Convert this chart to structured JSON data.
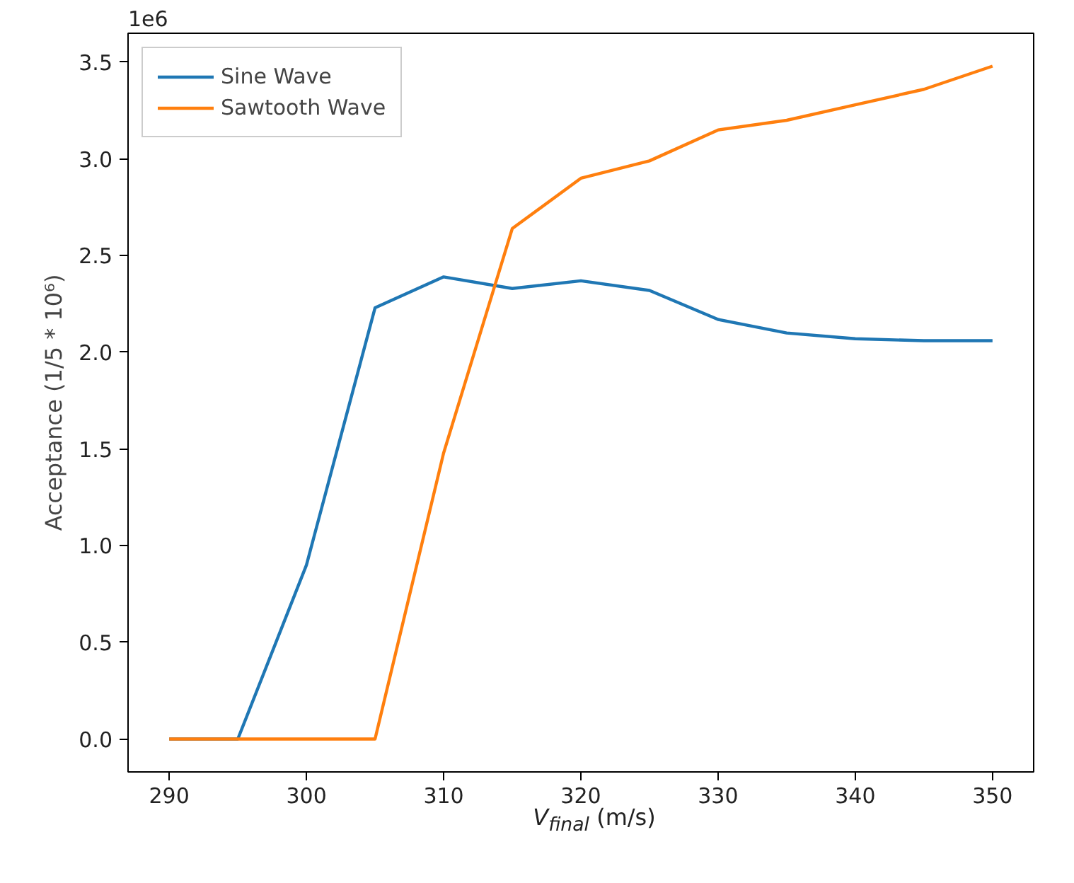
{
  "chart_data": {
    "type": "line",
    "xlabel": "V$_{final}$ (m/s)",
    "ylabel": "Acceptance (1/5 * 10⁶)",
    "annotations": [
      "1e6"
    ],
    "x": [
      290,
      295,
      300,
      305,
      310,
      315,
      320,
      325,
      330,
      335,
      340,
      345,
      350
    ],
    "series": [
      {
        "name": "Sine Wave",
        "color": "#1f77b4",
        "values": [
          0,
          0,
          0.9,
          2.23,
          2.39,
          2.33,
          2.37,
          2.32,
          2.17,
          2.1,
          2.07,
          2.06,
          2.06
        ]
      },
      {
        "name": "Sawtooth Wave",
        "color": "#ff7f0e",
        "values": [
          0,
          0,
          0,
          0,
          1.48,
          2.64,
          2.9,
          2.99,
          3.15,
          3.2,
          3.28,
          3.36,
          3.48
        ]
      }
    ],
    "xlim": [
      287,
      353
    ],
    "ylim": [
      -0.17,
      3.65
    ],
    "xticks": [
      290,
      300,
      310,
      320,
      330,
      340,
      350
    ],
    "yticks": [
      {
        "value": 0,
        "label": "0.0"
      },
      {
        "value": 0.5,
        "label": "0.5"
      },
      {
        "value": 1,
        "label": "1.0"
      },
      {
        "value": 1.5,
        "label": "1.5"
      },
      {
        "value": 2,
        "label": "2.0"
      },
      {
        "value": 2.5,
        "label": "2.5"
      },
      {
        "value": 3,
        "label": "3.0"
      },
      {
        "value": 3.5,
        "label": "3.5"
      }
    ],
    "legend": "top left",
    "grid": false,
    "line_style": "solid",
    "marker": "none"
  }
}
